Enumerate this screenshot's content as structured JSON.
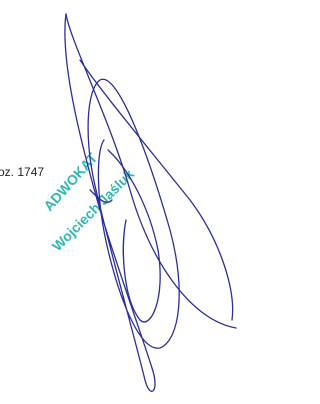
{
  "document": {
    "fragment_text": "oz. 1747",
    "stamp": {
      "title": "ADWOKAT",
      "name": "Wojciech Jaśluk"
    }
  }
}
